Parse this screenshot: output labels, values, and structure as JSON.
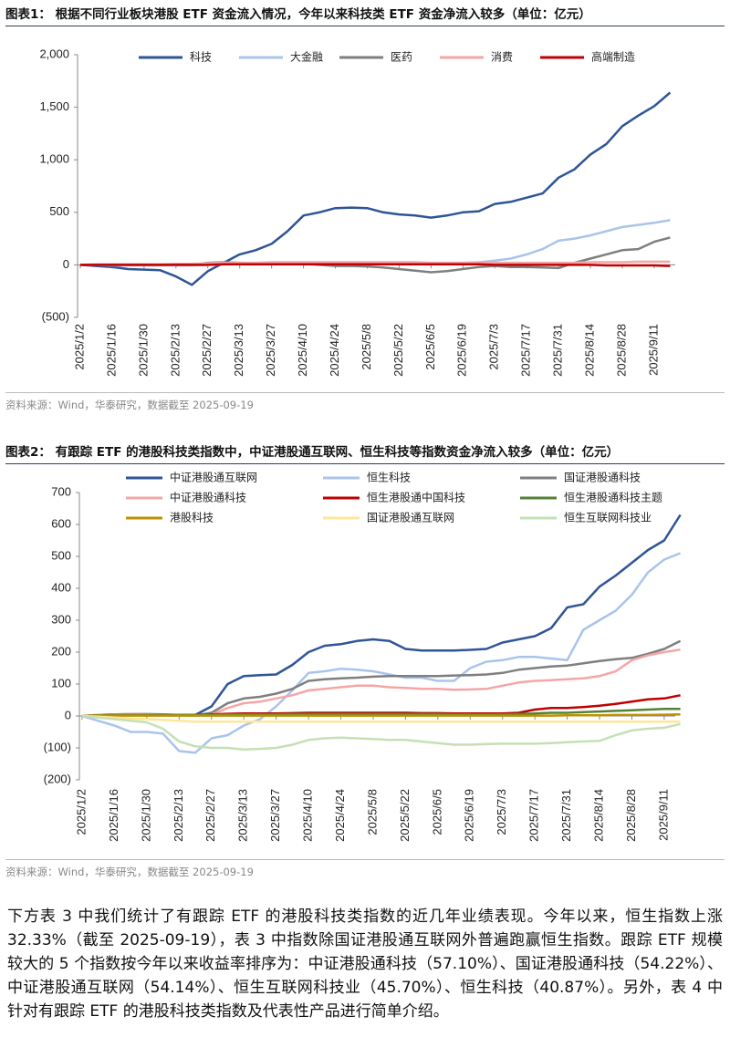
{
  "chart_data": [
    {
      "type": "line",
      "title": "图表1：  根据不同行业板块港股 ETF 资金流入情况，今年以来科技类 ETF 资金净流入较多（单位：亿元）",
      "source": "资料来源：Wind，华泰研究，数据截至 2025-09-19",
      "legend": "top",
      "grid": false,
      "categories": [
        "2025/1/2",
        null,
        "2025/1/16",
        null,
        "2025/1/30",
        null,
        "2025/2/13",
        null,
        "2025/2/27",
        null,
        "2025/3/13",
        null,
        "2025/3/27",
        null,
        "2025/4/10",
        null,
        "2025/4/24",
        null,
        "2025/5/8",
        null,
        "2025/5/22",
        null,
        "2025/6/5",
        null,
        "2025/6/19",
        null,
        "2025/7/3",
        null,
        "2025/7/17",
        null,
        "2025/7/31",
        null,
        "2025/8/14",
        null,
        "2025/8/28",
        null,
        "2025/9/11",
        null
      ],
      "ylim": [
        -500,
        2000
      ],
      "yticks": [
        {
          "value": -500,
          "label": "(500)"
        },
        0,
        500,
        {
          "value": 1000,
          "label": "1,000"
        },
        {
          "value": 1500,
          "label": "1,500"
        },
        {
          "value": 2000,
          "label": "2,000"
        }
      ],
      "series": [
        {
          "name": "科技",
          "color": "#2e5597",
          "values": [
            0,
            -10,
            -20,
            -40,
            -45,
            -50,
            -110,
            -190,
            -60,
            20,
            100,
            140,
            200,
            320,
            470,
            500,
            540,
            545,
            540,
            500,
            480,
            470,
            450,
            470,
            500,
            510,
            580,
            600,
            640,
            680,
            830,
            910,
            1050,
            1150,
            1320,
            1420,
            1510,
            1640
          ]
        },
        {
          "name": "大金融",
          "color": "#a9c4eb",
          "values": [
            0,
            0,
            -5,
            -5,
            -5,
            -5,
            -5,
            -5,
            0,
            5,
            10,
            10,
            10,
            10,
            10,
            10,
            10,
            10,
            10,
            10,
            10,
            10,
            10,
            15,
            20,
            25,
            40,
            60,
            100,
            150,
            230,
            250,
            280,
            320,
            360,
            380,
            400,
            425
          ]
        },
        {
          "name": "医药",
          "color": "#7f7f7f",
          "values": [
            0,
            0,
            0,
            0,
            0,
            0,
            0,
            0,
            20,
            25,
            20,
            15,
            20,
            20,
            10,
            0,
            -10,
            -10,
            -15,
            -25,
            -40,
            -55,
            -70,
            -60,
            -40,
            -20,
            -10,
            -20,
            -20,
            -25,
            -30,
            20,
            60,
            100,
            140,
            150,
            220,
            260
          ]
        },
        {
          "name": "消费",
          "color": "#f4a6a6",
          "values": [
            0,
            5,
            5,
            5,
            5,
            5,
            10,
            10,
            15,
            20,
            20,
            20,
            25,
            25,
            25,
            25,
            25,
            25,
            25,
            25,
            25,
            25,
            20,
            20,
            20,
            20,
            20,
            20,
            20,
            20,
            20,
            20,
            25,
            25,
            25,
            30,
            30,
            30
          ]
        },
        {
          "name": "高端制造",
          "color": "#c00000",
          "values": [
            0,
            0,
            0,
            0,
            0,
            0,
            0,
            0,
            0,
            5,
            5,
            5,
            5,
            5,
            5,
            5,
            5,
            5,
            5,
            5,
            5,
            5,
            5,
            5,
            5,
            5,
            0,
            0,
            0,
            0,
            0,
            0,
            0,
            -5,
            -5,
            -5,
            -5,
            -10
          ]
        }
      ]
    },
    {
      "type": "line",
      "title": "图表2：  有跟踪 ETF 的港股科技类指数中，中证港股通互联网、恒生科技等指数资金净流入较多（单位：亿元）",
      "source": "资料来源：Wind，华泰研究，数据截至 2025-09-19",
      "legend": "top",
      "grid": false,
      "categories": [
        "2025/1/2",
        null,
        "2025/1/16",
        null,
        "2025/1/30",
        null,
        "2025/2/13",
        null,
        "2025/2/27",
        null,
        "2025/3/13",
        null,
        "2025/3/27",
        null,
        "2025/4/10",
        null,
        "2025/4/24",
        null,
        "2025/5/8",
        null,
        "2025/5/22",
        null,
        "2025/6/5",
        null,
        "2025/6/19",
        null,
        "2025/7/3",
        null,
        "2025/7/17",
        null,
        "2025/7/31",
        null,
        "2025/8/14",
        null,
        "2025/8/28",
        null,
        "2025/9/11",
        null
      ],
      "ylim": [
        -200,
        700
      ],
      "yticks": [
        {
          "value": -200,
          "label": "(200)"
        },
        {
          "value": -100,
          "label": "(100)"
        },
        0,
        100,
        200,
        300,
        400,
        500,
        600,
        700
      ],
      "series": [
        {
          "name": "中证港股通互联网",
          "color": "#2e5597",
          "values": [
            0,
            2,
            3,
            3,
            3,
            3,
            3,
            3,
            30,
            100,
            125,
            128,
            130,
            160,
            200,
            220,
            225,
            235,
            240,
            235,
            210,
            205,
            205,
            205,
            207,
            210,
            230,
            240,
            250,
            275,
            340,
            350,
            405,
            440,
            480,
            520,
            550,
            630
          ]
        },
        {
          "name": "恒生科技",
          "color": "#a9c4eb",
          "values": [
            0,
            -15,
            -30,
            -50,
            -50,
            -55,
            -110,
            -115,
            -70,
            -60,
            -30,
            -10,
            30,
            80,
            135,
            140,
            148,
            145,
            140,
            130,
            120,
            120,
            110,
            110,
            150,
            170,
            175,
            185,
            185,
            180,
            175,
            270,
            300,
            330,
            380,
            450,
            490,
            510
          ]
        },
        {
          "name": "国证港股通科技",
          "color": "#7f7f7f",
          "values": [
            0,
            3,
            5,
            6,
            6,
            5,
            3,
            2,
            10,
            40,
            55,
            60,
            70,
            85,
            110,
            115,
            118,
            120,
            123,
            125,
            125,
            125,
            125,
            127,
            128,
            130,
            135,
            145,
            150,
            155,
            158,
            165,
            172,
            178,
            182,
            195,
            210,
            235
          ]
        },
        {
          "name": "中证港股通科技",
          "color": "#f4a6a6",
          "values": [
            0,
            3,
            5,
            6,
            5,
            4,
            2,
            1,
            5,
            25,
            40,
            45,
            55,
            65,
            80,
            85,
            90,
            95,
            95,
            90,
            88,
            85,
            85,
            82,
            83,
            85,
            95,
            105,
            110,
            112,
            115,
            118,
            125,
            140,
            175,
            190,
            200,
            208
          ]
        },
        {
          "name": "恒生港股通中国科技",
          "color": "#c00000",
          "values": [
            0,
            2,
            3,
            3,
            3,
            3,
            3,
            3,
            5,
            7,
            8,
            8,
            8,
            9,
            10,
            10,
            10,
            10,
            10,
            10,
            10,
            9,
            9,
            8,
            8,
            8,
            8,
            10,
            20,
            25,
            25,
            28,
            32,
            38,
            45,
            52,
            55,
            65
          ]
        },
        {
          "name": "恒生港股通科技主题",
          "color": "#548235",
          "values": [
            0,
            2,
            3,
            3,
            3,
            3,
            3,
            3,
            4,
            5,
            5,
            5,
            5,
            6,
            6,
            6,
            6,
            6,
            6,
            6,
            6,
            6,
            6,
            5,
            5,
            5,
            5,
            6,
            8,
            10,
            10,
            12,
            14,
            16,
            18,
            20,
            22,
            22
          ]
        },
        {
          "name": "港股科技",
          "color": "#bf9000",
          "values": [
            0,
            1,
            1,
            1,
            1,
            1,
            1,
            1,
            1,
            1,
            1,
            1,
            1,
            1,
            1,
            1,
            1,
            1,
            1,
            1,
            1,
            1,
            1,
            1,
            1,
            1,
            1,
            1,
            1,
            1,
            2,
            2,
            2,
            3,
            3,
            3,
            4,
            5
          ]
        },
        {
          "name": "国证港股通互联网",
          "color": "#ffe699",
          "values": [
            0,
            -2,
            -5,
            -8,
            -10,
            -12,
            -15,
            -18,
            -18,
            -18,
            -18,
            -18,
            -18,
            -18,
            -18,
            -18,
            -18,
            -18,
            -18,
            -18,
            -18,
            -18,
            -18,
            -18,
            -18,
            -18,
            -18,
            -18,
            -18,
            -18,
            -18,
            -18,
            -18,
            -18,
            -18,
            -18,
            -18,
            -18
          ]
        },
        {
          "name": "恒生互联网科技业",
          "color": "#c5e0b4",
          "values": [
            0,
            -5,
            -10,
            -15,
            -20,
            -40,
            -80,
            -95,
            -100,
            -100,
            -105,
            -103,
            -100,
            -90,
            -75,
            -70,
            -68,
            -70,
            -72,
            -75,
            -75,
            -80,
            -85,
            -90,
            -90,
            -88,
            -87,
            -87,
            -87,
            -85,
            -82,
            -80,
            -78,
            -60,
            -45,
            -40,
            -37,
            -25
          ]
        }
      ]
    }
  ],
  "paragraph": "下方表 3 中我们统计了有跟踪 ETF 的港股科技类指数的近几年业绩表现。今年以来，恒生指数上涨 32.33%（截至 2025-09-19），表 3 中指数除国证港股通互联网外普遍跑赢恒生指数。跟踪 ETF 规模较大的 5 个指数按今年以来收益率排序为：中证港股通科技（57.10%）、国证港股通科技（54.22%）、中证港股通互联网（54.14%）、恒生互联网科技业（45.70%）、恒生科技（40.87%）。另外，表 4 中针对有跟踪 ETF 的港股科技类指数及代表性产品进行简单介绍。"
}
